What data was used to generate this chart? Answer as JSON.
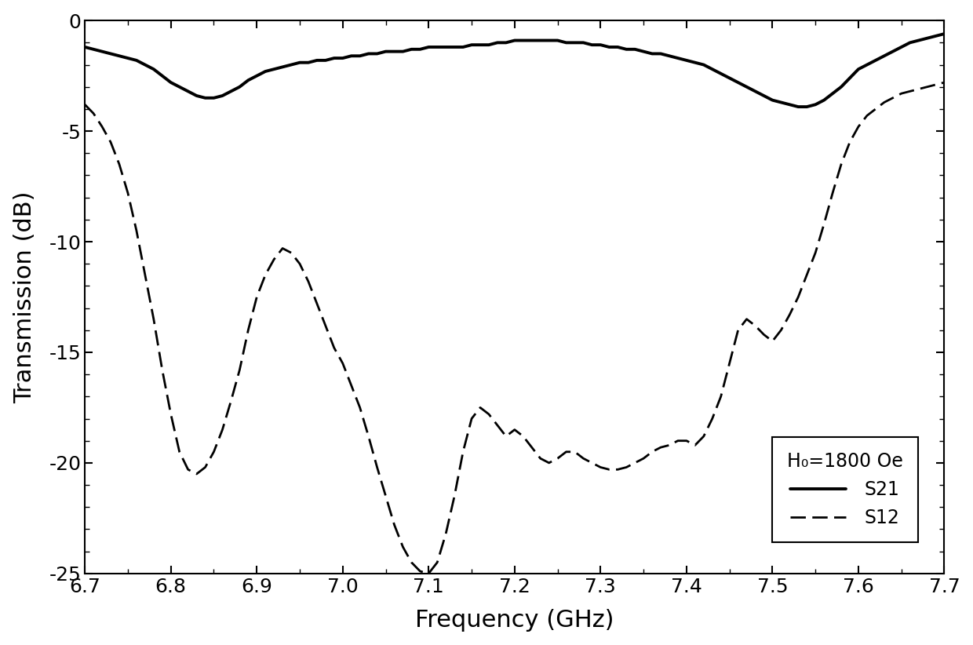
{
  "xlabel": "Frequency (GHz)",
  "ylabel": "Transmission (dB)",
  "xlim": [
    6.7,
    7.7
  ],
  "ylim": [
    -25,
    0
  ],
  "xticks": [
    6.7,
    6.8,
    6.9,
    7.0,
    7.1,
    7.2,
    7.3,
    7.4,
    7.5,
    7.6,
    7.7
  ],
  "yticks": [
    0,
    -5,
    -10,
    -15,
    -20,
    -25
  ],
  "legend_title": "H₀=1800 Oe",
  "legend_entries": [
    "S21",
    "S12"
  ],
  "background_color": "#ffffff",
  "line_color": "#000000",
  "s21_linewidth": 2.8,
  "s12_linewidth": 2.0,
  "s21_linestyle": "solid",
  "s12_linestyle": "dashed",
  "s21_x": [
    6.7,
    6.71,
    6.72,
    6.73,
    6.74,
    6.75,
    6.76,
    6.77,
    6.78,
    6.79,
    6.8,
    6.81,
    6.82,
    6.83,
    6.84,
    6.85,
    6.86,
    6.87,
    6.88,
    6.89,
    6.9,
    6.91,
    6.92,
    6.93,
    6.94,
    6.95,
    6.96,
    6.97,
    6.98,
    6.99,
    7.0,
    7.01,
    7.02,
    7.03,
    7.04,
    7.05,
    7.06,
    7.07,
    7.08,
    7.09,
    7.1,
    7.11,
    7.12,
    7.13,
    7.14,
    7.15,
    7.16,
    7.17,
    7.18,
    7.19,
    7.2,
    7.21,
    7.22,
    7.23,
    7.24,
    7.25,
    7.26,
    7.27,
    7.28,
    7.29,
    7.3,
    7.31,
    7.32,
    7.33,
    7.34,
    7.35,
    7.36,
    7.37,
    7.38,
    7.39,
    7.4,
    7.41,
    7.42,
    7.43,
    7.44,
    7.45,
    7.46,
    7.47,
    7.48,
    7.49,
    7.5,
    7.51,
    7.52,
    7.53,
    7.54,
    7.55,
    7.56,
    7.57,
    7.58,
    7.59,
    7.6,
    7.61,
    7.62,
    7.63,
    7.64,
    7.65,
    7.66,
    7.67,
    7.68,
    7.69,
    7.7
  ],
  "s21_y": [
    -1.2,
    -1.3,
    -1.4,
    -1.5,
    -1.6,
    -1.7,
    -1.8,
    -2.0,
    -2.2,
    -2.5,
    -2.8,
    -3.0,
    -3.2,
    -3.4,
    -3.5,
    -3.5,
    -3.4,
    -3.2,
    -3.0,
    -2.7,
    -2.5,
    -2.3,
    -2.2,
    -2.1,
    -2.0,
    -1.9,
    -1.9,
    -1.8,
    -1.8,
    -1.7,
    -1.7,
    -1.6,
    -1.6,
    -1.5,
    -1.5,
    -1.4,
    -1.4,
    -1.4,
    -1.3,
    -1.3,
    -1.2,
    -1.2,
    -1.2,
    -1.2,
    -1.2,
    -1.1,
    -1.1,
    -1.1,
    -1.0,
    -1.0,
    -0.9,
    -0.9,
    -0.9,
    -0.9,
    -0.9,
    -0.9,
    -1.0,
    -1.0,
    -1.0,
    -1.1,
    -1.1,
    -1.2,
    -1.2,
    -1.3,
    -1.3,
    -1.4,
    -1.5,
    -1.5,
    -1.6,
    -1.7,
    -1.8,
    -1.9,
    -2.0,
    -2.2,
    -2.4,
    -2.6,
    -2.8,
    -3.0,
    -3.2,
    -3.4,
    -3.6,
    -3.7,
    -3.8,
    -3.9,
    -3.9,
    -3.8,
    -3.6,
    -3.3,
    -3.0,
    -2.6,
    -2.2,
    -2.0,
    -1.8,
    -1.6,
    -1.4,
    -1.2,
    -1.0,
    -0.9,
    -0.8,
    -0.7,
    -0.6
  ],
  "s12_x": [
    6.7,
    6.71,
    6.72,
    6.73,
    6.74,
    6.75,
    6.76,
    6.77,
    6.78,
    6.79,
    6.8,
    6.81,
    6.82,
    6.83,
    6.84,
    6.85,
    6.86,
    6.87,
    6.88,
    6.89,
    6.9,
    6.91,
    6.92,
    6.93,
    6.94,
    6.95,
    6.96,
    6.97,
    6.98,
    6.99,
    7.0,
    7.01,
    7.02,
    7.03,
    7.04,
    7.05,
    7.06,
    7.07,
    7.08,
    7.09,
    7.1,
    7.11,
    7.12,
    7.13,
    7.14,
    7.15,
    7.16,
    7.17,
    7.18,
    7.19,
    7.2,
    7.21,
    7.22,
    7.23,
    7.24,
    7.25,
    7.26,
    7.27,
    7.28,
    7.29,
    7.3,
    7.31,
    7.32,
    7.33,
    7.34,
    7.35,
    7.36,
    7.37,
    7.38,
    7.39,
    7.4,
    7.41,
    7.42,
    7.43,
    7.44,
    7.45,
    7.46,
    7.47,
    7.48,
    7.49,
    7.5,
    7.51,
    7.52,
    7.53,
    7.54,
    7.55,
    7.56,
    7.57,
    7.58,
    7.59,
    7.6,
    7.61,
    7.62,
    7.63,
    7.64,
    7.65,
    7.66,
    7.67,
    7.68,
    7.69,
    7.7
  ],
  "s12_y": [
    -3.8,
    -4.2,
    -4.8,
    -5.5,
    -6.5,
    -7.8,
    -9.5,
    -11.5,
    -13.5,
    -15.8,
    -17.8,
    -19.5,
    -20.3,
    -20.5,
    -20.2,
    -19.5,
    -18.5,
    -17.2,
    -15.8,
    -14.0,
    -12.5,
    -11.5,
    -10.8,
    -10.3,
    -10.5,
    -11.0,
    -11.8,
    -12.8,
    -13.8,
    -14.8,
    -15.5,
    -16.5,
    -17.5,
    -18.8,
    -20.2,
    -21.5,
    -22.8,
    -23.8,
    -24.5,
    -24.9,
    -25.0,
    -24.5,
    -23.2,
    -21.5,
    -19.5,
    -18.0,
    -17.5,
    -17.8,
    -18.3,
    -18.8,
    -18.5,
    -18.8,
    -19.3,
    -19.8,
    -20.0,
    -19.8,
    -19.5,
    -19.5,
    -19.8,
    -20.0,
    -20.2,
    -20.3,
    -20.3,
    -20.2,
    -20.0,
    -19.8,
    -19.5,
    -19.3,
    -19.2,
    -19.0,
    -19.0,
    -19.2,
    -18.8,
    -18.0,
    -17.0,
    -15.5,
    -14.0,
    -13.5,
    -13.8,
    -14.2,
    -14.5,
    -14.0,
    -13.3,
    -12.5,
    -11.5,
    -10.5,
    -9.2,
    -7.8,
    -6.5,
    -5.5,
    -4.8,
    -4.3,
    -4.0,
    -3.7,
    -3.5,
    -3.3,
    -3.2,
    -3.1,
    -3.0,
    -2.9,
    -2.8
  ]
}
